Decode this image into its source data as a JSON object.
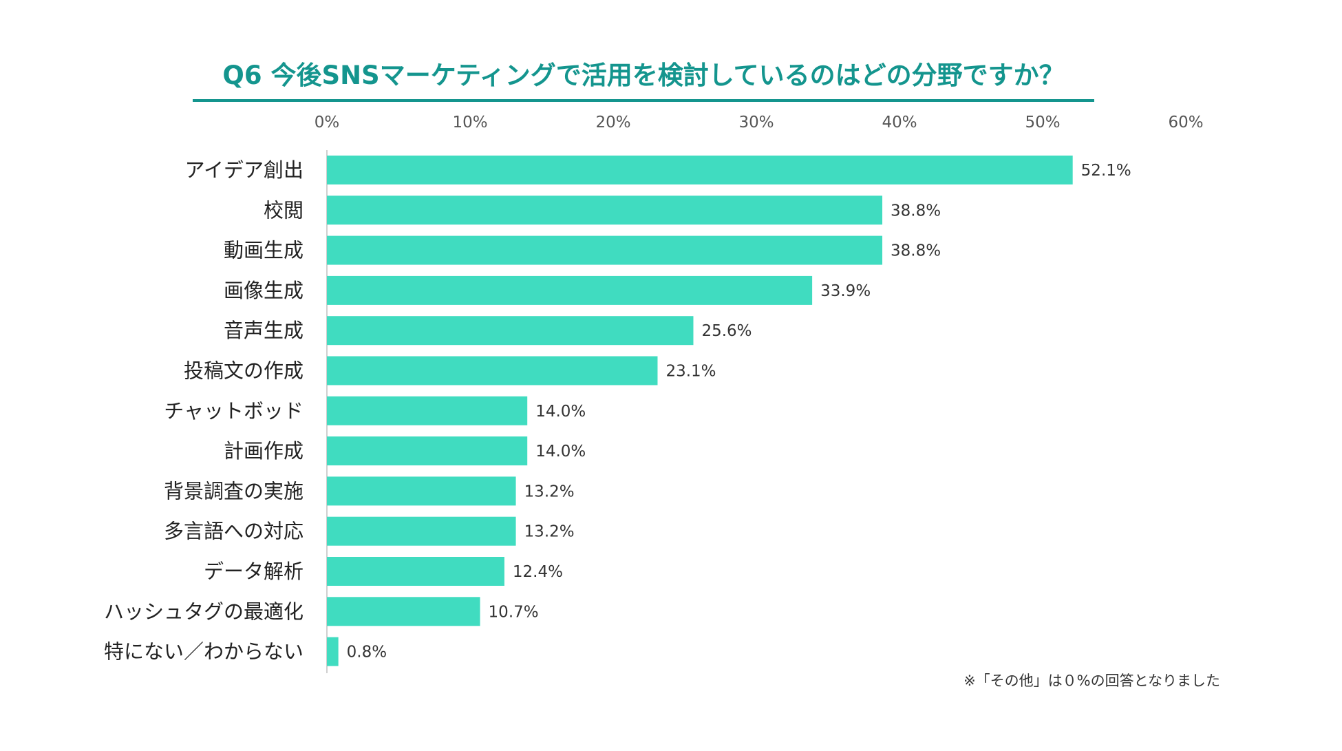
{
  "chart_data": {
    "type": "bar",
    "orientation": "horizontal",
    "title": "Q6 今後SNSマーケティングで活用を検討しているのはどの分野ですか？",
    "categories": [
      "アイデア創出",
      "校閲",
      "動画生成",
      "画像生成",
      "音声生成",
      "投稿文の作成",
      "チャットボッド",
      "計画作成",
      "背景調査の実施",
      "多言語への対応",
      "データ解析",
      "ハッシュタグの最適化",
      "特にない／わからない"
    ],
    "values": [
      52.1,
      38.8,
      38.8,
      33.9,
      25.6,
      23.1,
      14.0,
      14.0,
      13.2,
      13.2,
      12.4,
      10.7,
      0.8
    ],
    "value_labels": [
      "52.1%",
      "38.8%",
      "38.8%",
      "33.9%",
      "25.6%",
      "23.1%",
      "14.0%",
      "14.0%",
      "13.2%",
      "13.2%",
      "12.4%",
      "10.7%",
      "0.8%"
    ],
    "xlim": [
      0,
      60
    ],
    "x_ticks": [
      0,
      10,
      20,
      30,
      40,
      50,
      60
    ],
    "x_tick_labels": [
      "0%",
      "10%",
      "20%",
      "30%",
      "40%",
      "50%",
      "60%"
    ],
    "x_axis_position": "top",
    "grid": false,
    "xlabel": "",
    "ylabel": ""
  },
  "note": "※「その他」は０%の回答となりました",
  "colors": {
    "bar": "#40dcc0",
    "title": "#14958e",
    "title_underline": "#14958e",
    "axis_line": "#cfcfcf"
  }
}
